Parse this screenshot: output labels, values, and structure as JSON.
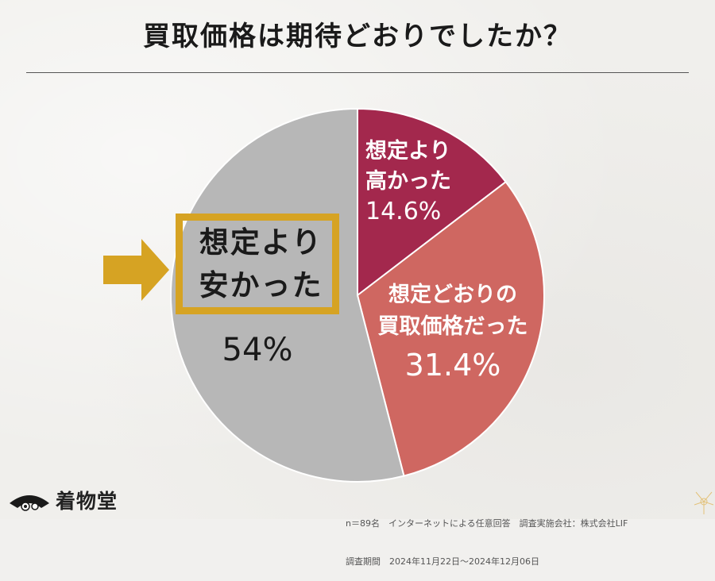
{
  "title": "買取価格は期待どおりでしたか？",
  "chart_data": {
    "type": "pie",
    "title": "買取価格は期待どおりでしたか？",
    "slices": [
      {
        "label_line1": "想定より",
        "label_line2": "高かった",
        "value": 14.6,
        "value_label": "14.6%",
        "color": "#a3284d"
      },
      {
        "label_line1": "想定どおりの",
        "label_line2": "買取価格だった",
        "value": 31.4,
        "value_label": "31.4%",
        "color": "#cf6761"
      },
      {
        "label_line1": "想定より",
        "label_line2": "安かった",
        "value": 54,
        "value_label": "54%",
        "color": "#b7b7b7"
      }
    ],
    "start_angle_deg": 0,
    "direction": "clockwise",
    "highlight": {
      "slice": "想定より安かった",
      "color": "#d6a323"
    }
  },
  "brand": {
    "name": "着物堂"
  },
  "footnote": {
    "line1": "n＝89名　インターネットによる任意回答　調査実施会社：株式会社LIF",
    "line2": "調査期間　2024年11月22日～2024年12月06日"
  }
}
